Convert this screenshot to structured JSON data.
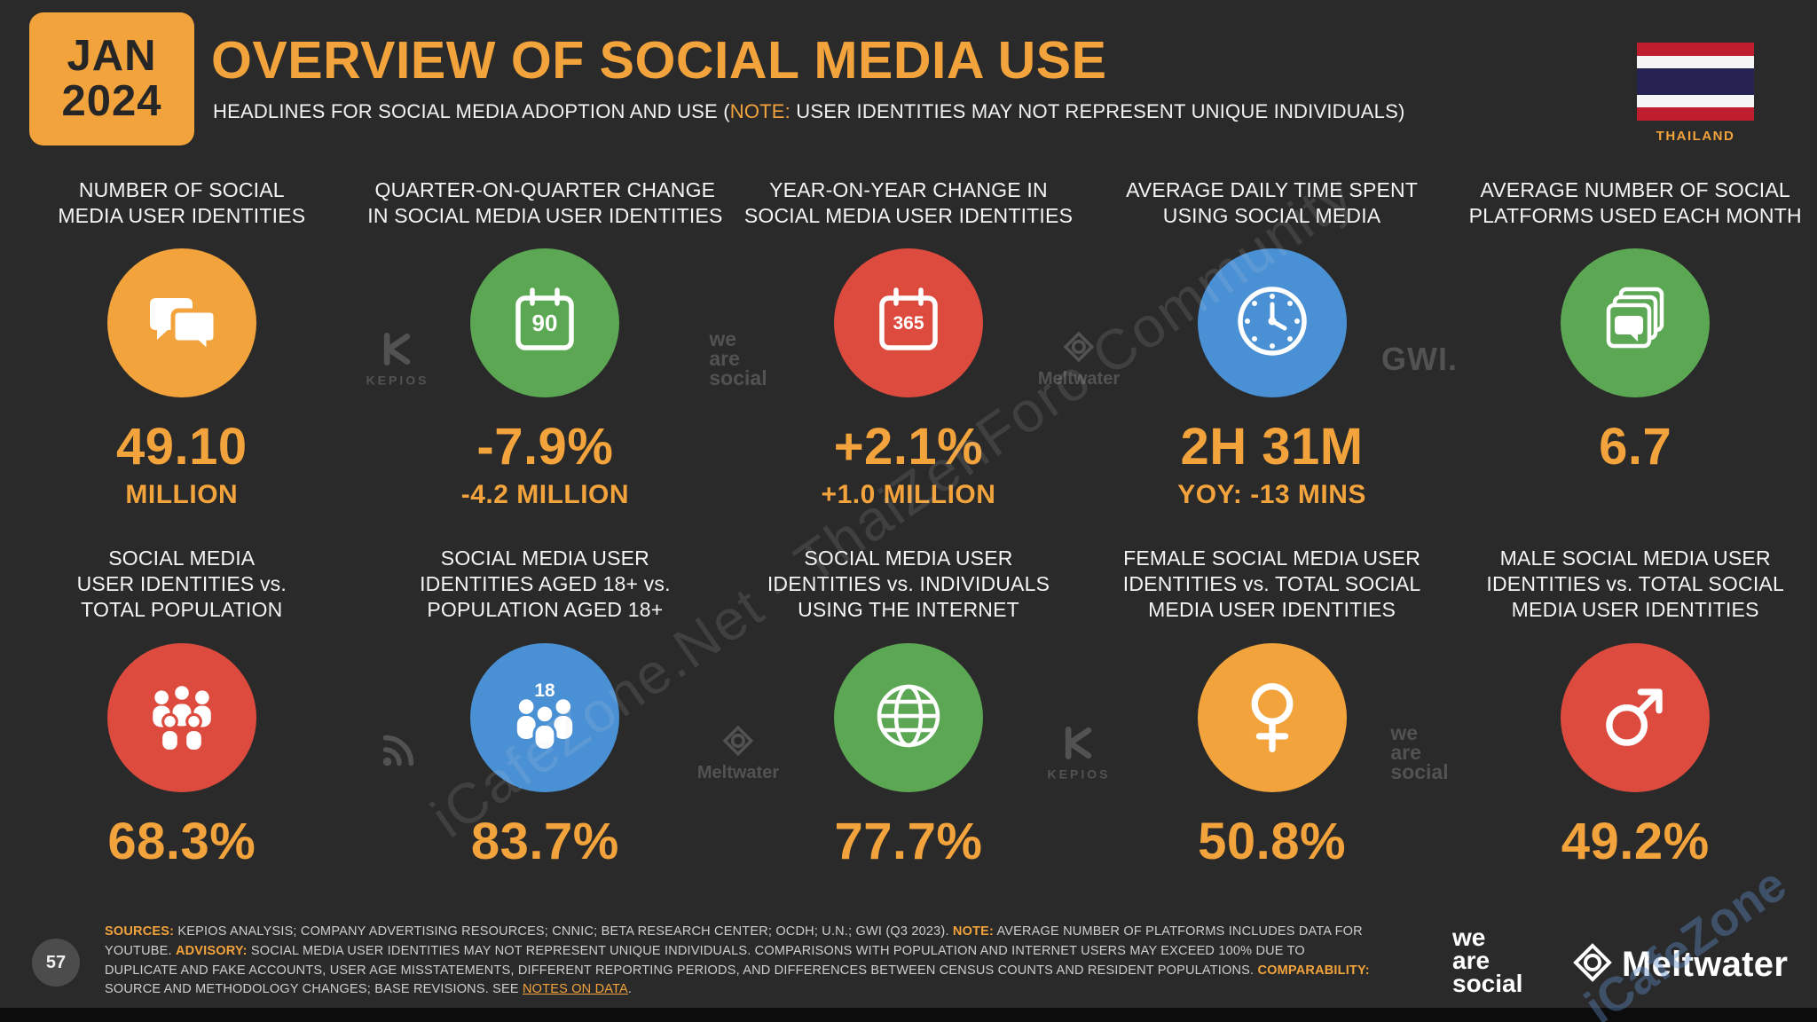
{
  "meta": {
    "badge_line1": "JAN",
    "badge_line2": "2024",
    "title": "OVERVIEW OF SOCIAL MEDIA USE",
    "subtitle_prefix": "HEADLINES FOR SOCIAL MEDIA ADOPTION AND USE (",
    "subtitle_note_label": "NOTE:",
    "subtitle_suffix": " USER IDENTITIES MAY NOT REPRESENT UNIQUE INDIVIDUALS)",
    "country": "THAILAND",
    "page_number": "57"
  },
  "colors": {
    "background": "#2A2A2A",
    "accent_orange": "#F2A33C",
    "green": "#5CA753",
    "red": "#DD4B3E",
    "blue": "#4A90D5",
    "watermark_gray": "#525252",
    "flag_stripes": [
      "#BF1E2E",
      "#F5F5F5",
      "#262350",
      "#F5F5F5",
      "#BF1E2E"
    ]
  },
  "stats": [
    {
      "label": "NUMBER OF SOCIAL\nMEDIA USER IDENTITIES",
      "value": "49.10",
      "subvalue": "MILLION",
      "color": "#F2A33C",
      "icon": "chat-bubbles-icon",
      "icon_text": ""
    },
    {
      "label": "QUARTER-ON-QUARTER CHANGE\nIN SOCIAL MEDIA USER IDENTITIES",
      "value": "-7.9%",
      "subvalue": "-4.2 MILLION",
      "color": "#5CA753",
      "icon": "calendar-90-icon",
      "icon_text": "90"
    },
    {
      "label": "YEAR-ON-YEAR CHANGE IN\nSOCIAL MEDIA USER IDENTITIES",
      "value": "+2.1%",
      "subvalue": "+1.0 MILLION",
      "color": "#DD4B3E",
      "icon": "calendar-365-icon",
      "icon_text": "365"
    },
    {
      "label": "AVERAGE DAILY TIME SPENT\nUSING SOCIAL MEDIA",
      "value": "2H 31M",
      "subvalue": "YOY: -13 MINS",
      "color": "#4A90D5",
      "icon": "clock-icon",
      "icon_text": ""
    },
    {
      "label": "AVERAGE NUMBER OF SOCIAL\nPLATFORMS USED EACH MONTH",
      "value": "6.7",
      "subvalue": "",
      "color": "#5CA753",
      "icon": "platforms-icon",
      "icon_text": ""
    },
    {
      "label": "SOCIAL MEDIA\nUSER IDENTITIES vs.\nTOTAL POPULATION",
      "value": "68.3%",
      "subvalue": "",
      "color": "#DD4B3E",
      "icon": "people-group-icon",
      "icon_text": ""
    },
    {
      "label": "SOCIAL MEDIA USER\nIDENTITIES AGED 18+ vs.\nPOPULATION AGED 18+",
      "value": "83.7%",
      "subvalue": "",
      "color": "#4A90D5",
      "icon": "people-18-icon",
      "icon_text": "18"
    },
    {
      "label": "SOCIAL MEDIA USER\nIDENTITIES vs. INDIVIDUALS\nUSING THE INTERNET",
      "value": "77.7%",
      "subvalue": "",
      "color": "#5CA753",
      "icon": "globe-icon",
      "icon_text": ""
    },
    {
      "label": "FEMALE SOCIAL MEDIA USER\nIDENTITIES vs. TOTAL SOCIAL\nMEDIA USER IDENTITIES",
      "value": "50.8%",
      "subvalue": "",
      "color": "#F2A33C",
      "icon": "female-icon",
      "icon_text": ""
    },
    {
      "label": "MALE SOCIAL MEDIA USER\nIDENTITIES vs. TOTAL SOCIAL\nMEDIA USER IDENTITIES",
      "value": "49.2%",
      "subvalue": "",
      "color": "#DD4B3E",
      "icon": "male-icon",
      "icon_text": ""
    }
  ],
  "watermarks": {
    "row1": [
      {
        "type": "kepios",
        "label": "KEPIOS"
      },
      {
        "type": "wearesocial",
        "lines": [
          "we",
          "are",
          "social"
        ]
      },
      {
        "type": "meltwater",
        "label": "Meltwater"
      },
      {
        "type": "gwi",
        "label": "GWI."
      }
    ],
    "row2": [
      {
        "type": "broadcast",
        "label": ""
      },
      {
        "type": "meltwater",
        "label": "Meltwater"
      },
      {
        "type": "kepios",
        "label": "KEPIOS"
      },
      {
        "type": "wearesocial",
        "lines": [
          "we",
          "are",
          "social"
        ]
      }
    ],
    "diagonal": "iCafeZone.Net - ThaiZenForo Community",
    "corner": "iCafeZone"
  },
  "footer": {
    "sources_label": "SOURCES:",
    "sources_text": " KEPIOS ANALYSIS; COMPANY ADVERTISING RESOURCES; CNNIC; BETA RESEARCH CENTER; OCDH; U.N.; GWI (Q3 2023). ",
    "note_label": "NOTE:",
    "note_text": " AVERAGE NUMBER OF PLATFORMS INCLUDES DATA FOR YOUTUBE. ",
    "advisory_label": "ADVISORY:",
    "advisory_text": " SOCIAL MEDIA USER IDENTITIES MAY NOT REPRESENT UNIQUE INDIVIDUALS. COMPARISONS WITH POPULATION AND INTERNET USERS MAY EXCEED 100% DUE TO DUPLICATE AND FAKE ACCOUNTS, USER AGE MISSTATEMENTS, DIFFERENT REPORTING PERIODS, AND DIFFERENCES BETWEEN CENSUS COUNTS AND RESIDENT POPULATIONS. ",
    "comparability_label": "COMPARABILITY:",
    "comparability_text": " SOURCE AND METHODOLOGY CHANGES; BASE REVISIONS. SEE ",
    "notes_link": "NOTES ON DATA",
    "period": ".",
    "was_logo_lines": [
      "we",
      "are",
      "social"
    ],
    "meltwater_label": "Meltwater"
  },
  "chart_data": {
    "type": "table",
    "title": "Overview of Social Media Use",
    "subtitle": "Headlines for social media adoption and use",
    "country": "Thailand",
    "period": "Jan 2024",
    "metrics": [
      {
        "label": "Number of social media user identities",
        "value": "49.10 million"
      },
      {
        "label": "Quarter-on-quarter change in social media user identities",
        "value": "-7.9%",
        "detail": "-4.2 million"
      },
      {
        "label": "Year-on-year change in social media user identities",
        "value": "+2.1%",
        "detail": "+1.0 million"
      },
      {
        "label": "Average daily time spent using social media",
        "value": "2H 31M",
        "detail": "YoY: -13 mins"
      },
      {
        "label": "Average number of social platforms used each month",
        "value": "6.7"
      },
      {
        "label": "Social media user identities vs. total population",
        "value": "68.3%"
      },
      {
        "label": "Social media user identities aged 18+ vs. population aged 18+",
        "value": "83.7%"
      },
      {
        "label": "Social media user identities vs. individuals using the internet",
        "value": "77.7%"
      },
      {
        "label": "Female social media user identities vs. total social media user identities",
        "value": "50.8%"
      },
      {
        "label": "Male social media user identities vs. total social media user identities",
        "value": "49.2%"
      }
    ]
  }
}
